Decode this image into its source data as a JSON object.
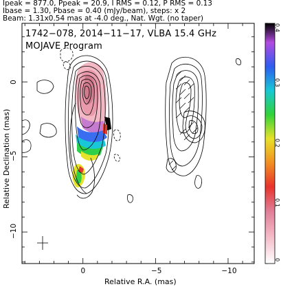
{
  "header": {
    "line1": "Ipeak = 877.0, Ppeak = 20.9, I RMS = 0.12, P RMS = 0.13",
    "line2": "Ibase = 1.30, Pbase = 0.40 (mJy/beam), steps: x 2",
    "line3": "Beam: 1.31x0.54 mas at -4.0 deg., Nat. Wgt. (no taper)"
  },
  "plot": {
    "title_line1": "1742−078, 2014−11−17, VLBA 15.4 GHz",
    "title_line2": "MOJAVE Program"
  },
  "chart_data": {
    "type": "contour-map",
    "xlabel": "Relative R.A. (mas)",
    "ylabel": "Relative Declination (mas)",
    "x_ticks": [
      {
        "label": "0",
        "value": 0
      },
      {
        "label": "−5",
        "value": -5
      },
      {
        "label": "−10",
        "value": -10
      }
    ],
    "y_ticks": [
      {
        "label": "0",
        "value": 0
      },
      {
        "label": "−5",
        "value": -5
      },
      {
        "label": "−10",
        "value": -10
      }
    ],
    "xlim": [
      4.2,
      -11.8
    ],
    "ylim": [
      -12.1,
      3.9
    ],
    "colorbar": {
      "range": [
        0,
        0.4
      ],
      "ticks": [
        {
          "label": "0",
          "value": 0
        },
        {
          "label": "0.1",
          "value": 0.1
        },
        {
          "label": "0.2",
          "value": 0.2
        },
        {
          "label": "0.3",
          "value": 0.3
        },
        {
          "label": "0.4",
          "value": 0.4
        }
      ]
    },
    "panels": [
      "total intensity + fractional polarization",
      "polarized intensity + EVPA"
    ]
  }
}
